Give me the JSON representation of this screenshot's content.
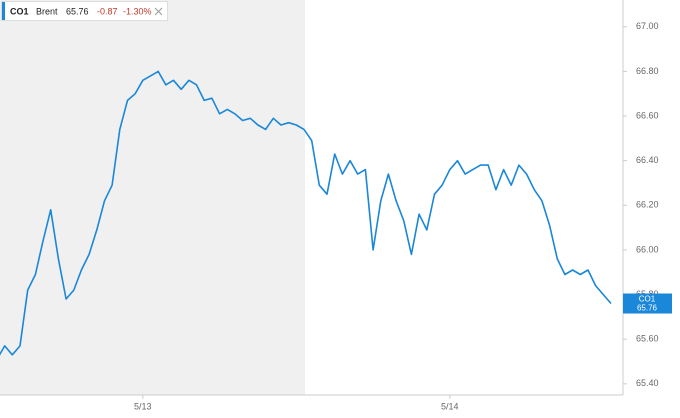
{
  "chart_data": {
    "type": "line",
    "legend": {
      "symbol": "CO1",
      "name": "Brent",
      "price": "65.76",
      "change": "-0.87",
      "change_pct": "-1.30%"
    },
    "color": "#1a87d8",
    "categories": [
      null,
      null,
      null,
      null,
      null,
      null,
      null,
      null,
      null,
      null,
      null,
      null,
      null,
      null,
      null,
      null,
      null,
      null,
      null,
      "5/13",
      null,
      null,
      null,
      null,
      null,
      null,
      null,
      null,
      null,
      null,
      null,
      null,
      null,
      null,
      null,
      null,
      null,
      null,
      null,
      null,
      null,
      null,
      null,
      null,
      null,
      null,
      null,
      null,
      null,
      null,
      null,
      null,
      null,
      null,
      null,
      null,
      null,
      null,
      null,
      "5/14",
      null,
      null,
      null,
      null,
      null,
      null,
      null,
      null,
      null,
      null,
      null,
      null,
      null,
      null,
      null,
      null,
      null,
      null,
      null,
      null,
      null
    ],
    "values": [
      65.51,
      65.57,
      65.53,
      65.57,
      65.82,
      65.89,
      66.04,
      66.18,
      65.96,
      65.78,
      65.82,
      65.91,
      65.98,
      66.09,
      66.22,
      66.29,
      66.54,
      66.67,
      66.7,
      66.76,
      66.78,
      66.8,
      66.74,
      66.76,
      66.72,
      66.76,
      66.74,
      66.67,
      66.68,
      66.61,
      66.63,
      66.61,
      66.58,
      66.59,
      66.56,
      66.54,
      66.59,
      66.56,
      66.57,
      66.56,
      66.54,
      66.49,
      66.29,
      66.25,
      66.43,
      66.34,
      66.4,
      66.34,
      66.36,
      66.0,
      66.22,
      66.34,
      66.22,
      66.13,
      65.98,
      66.16,
      66.09,
      66.25,
      66.29,
      66.36,
      66.4,
      66.34,
      66.36,
      66.38,
      66.38,
      66.27,
      66.36,
      66.29,
      66.38,
      66.34,
      66.27,
      66.22,
      66.11,
      65.96,
      65.89,
      65.91,
      65.89,
      65.91,
      65.84,
      65.8,
      65.76
    ],
    "ylim": [
      65.35,
      67.12
    ],
    "yticks": [
      {
        "value": 65.4,
        "label": "65.40"
      },
      {
        "value": 65.6,
        "label": "65.60"
      },
      {
        "value": 65.8,
        "label": "65.80"
      },
      {
        "value": 66.0,
        "label": "66.00"
      },
      {
        "value": 66.2,
        "label": "66.20"
      },
      {
        "value": 66.4,
        "label": "66.40"
      },
      {
        "value": 66.6,
        "label": "66.60"
      },
      {
        "value": 66.8,
        "label": "66.80"
      },
      {
        "value": 67.0,
        "label": "67.00"
      }
    ],
    "grid": false
  }
}
